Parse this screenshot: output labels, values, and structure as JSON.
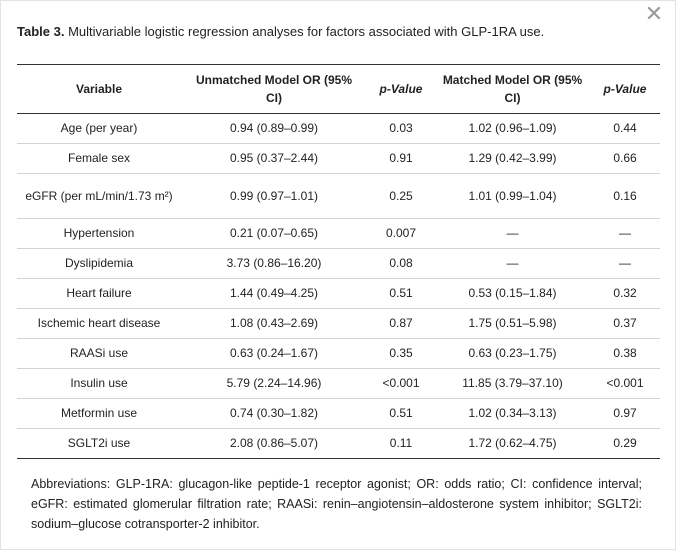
{
  "close_symbol": "✕",
  "caption": {
    "label": "Table 3.",
    "text": " Multivariable logistic regression analyses for factors associated with GLP-1RA use."
  },
  "table": {
    "headers": [
      "Variable",
      "Unmatched Model OR (95% CI)",
      "p-Value",
      "Matched Model OR (95% CI)",
      "p-Value"
    ],
    "rows": [
      [
        "Age (per year)",
        "0.94 (0.89–0.99)",
        "0.03",
        "1.02 (0.96–1.09)",
        "0.44"
      ],
      [
        "Female sex",
        "0.95 (0.37–2.44)",
        "0.91",
        "1.29 (0.42–3.99)",
        "0.66"
      ],
      [
        "eGFR (per mL/min/1.73 m²)",
        "0.99 (0.97–1.01)",
        "0.25",
        "1.01 (0.99–1.04)",
        "0.16"
      ],
      [
        "Hypertension",
        "0.21 (0.07–0.65)",
        "0.007",
        "—",
        "—"
      ],
      [
        "Dyslipidemia",
        "3.73 (0.86–16.20)",
        "0.08",
        "—",
        "—"
      ],
      [
        "Heart failure",
        "1.44 (0.49–4.25)",
        "0.51",
        "0.53 (0.15–1.84)",
        "0.32"
      ],
      [
        "Ischemic heart disease",
        "1.08 (0.43–2.69)",
        "0.87",
        "1.75 (0.51–5.98)",
        "0.37"
      ],
      [
        "RAASi use",
        "0.63 (0.24–1.67)",
        "0.35",
        "0.63 (0.23–1.75)",
        "0.38"
      ],
      [
        "Insulin use",
        "5.79 (2.24–14.96)",
        "<0.001",
        "11.85 (3.79–37.10)",
        "<0.001"
      ],
      [
        "Metformin use",
        "0.74 (0.30–1.82)",
        "0.51",
        "1.02 (0.34–3.13)",
        "0.97"
      ],
      [
        "SGLT2i use",
        "2.08 (0.86–5.07)",
        "0.11",
        "1.72 (0.62–4.75)",
        "0.29"
      ]
    ]
  },
  "footnote": "Abbreviations: GLP-1RA: glucagon-like peptide-1 receptor agonist; OR: odds ratio; CI: confidence interval; eGFR: estimated glomerular filtration rate; RAASi: renin–angiotensin–aldosterone system inhibitor; SGLT2i: sodium–glucose cotransporter-2 inhibitor."
}
